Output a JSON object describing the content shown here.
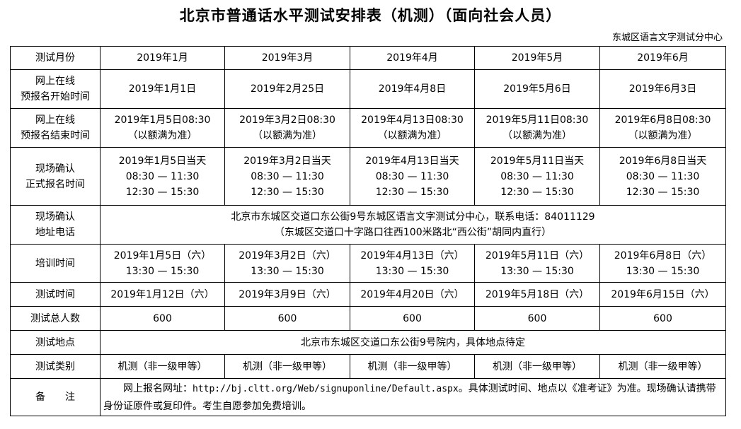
{
  "title": "北京市普通话水平测试安排表（机测）（面向社会人员）",
  "organizer": "东城区语言文字测试分中心",
  "rows": {
    "month": {
      "label": "测试月份",
      "values": [
        "2019年1月",
        "2019年3月",
        "2019年4月",
        "2019年5月",
        "2019年6月"
      ]
    },
    "reg_start": {
      "label_1": "网上在线",
      "label_2": "预报名开始时间",
      "values": [
        "2019年1月1日",
        "2019年2月25日",
        "2019年4月8日",
        "2019年5月6日",
        "2019年6月3日"
      ]
    },
    "reg_end": {
      "label_1": "网上在线",
      "label_2": "预报名结束时间",
      "values": [
        "2019年1月5日08:30",
        "2019年3月2日08:30",
        "2019年4月13日08:30",
        "2019年5月11日08:30",
        "2019年6月8日08:30"
      ],
      "note": "（以额满为准）"
    },
    "confirm": {
      "label_1": "现场确认",
      "label_2": "正式报名时间",
      "values": [
        "2019年1月5日当天",
        "2019年3月2日当天",
        "2019年4月13日当天",
        "2019年5月11日当天",
        "2019年6月8日当天"
      ],
      "slot_1": "08:30 — 11:30",
      "slot_2": "12:30 — 15:30"
    },
    "address": {
      "label_1": "现场确认",
      "label_2": "地址电话",
      "line_1": "北京市东城区交道口东公街9号东城区语言文字测试分中心，联系电话：84011129",
      "line_2": "（东城区交道口十字路口往西100米路北“西公街”胡同内直行）"
    },
    "training": {
      "label": "培训时间",
      "values": [
        "2019年1月5日（六）",
        "2019年3月2日（六）",
        "2019年4月13日（六）",
        "2019年5月11日（六）",
        "2019年6月8日（六）"
      ],
      "slot": "13:30 — 15:30"
    },
    "test_time": {
      "label": "测试时间",
      "values": [
        "2019年1月12日（六）",
        "2019年3月9日（六）",
        "2019年4月20日（六）",
        "2019年5月18日（六）",
        "2019年6月15日（六）"
      ]
    },
    "total": {
      "label": "测试总人数",
      "values": [
        "600",
        "600",
        "600",
        "600",
        "600"
      ]
    },
    "location": {
      "label": "测试地点",
      "value": "北京市东城区交道口东公街9号院内，具体地点待定"
    },
    "category": {
      "label": "测试类别",
      "values": [
        "机测（非一级甲等）",
        "机测（非一级甲等）",
        "机测（非一级甲等）",
        "机测（非一级甲等）",
        "机测（非一级甲等）"
      ]
    },
    "remarks": {
      "label": "备　　注",
      "prefix": "网上报名网址：",
      "url": "http://bj.cltt.org/Web/signuponline/Default.aspx",
      "suffix": "。具体测试时间、地点以《准考证》为准。现场确认请携带身份证原件或复印件。考生自愿参加免费培训。"
    }
  }
}
